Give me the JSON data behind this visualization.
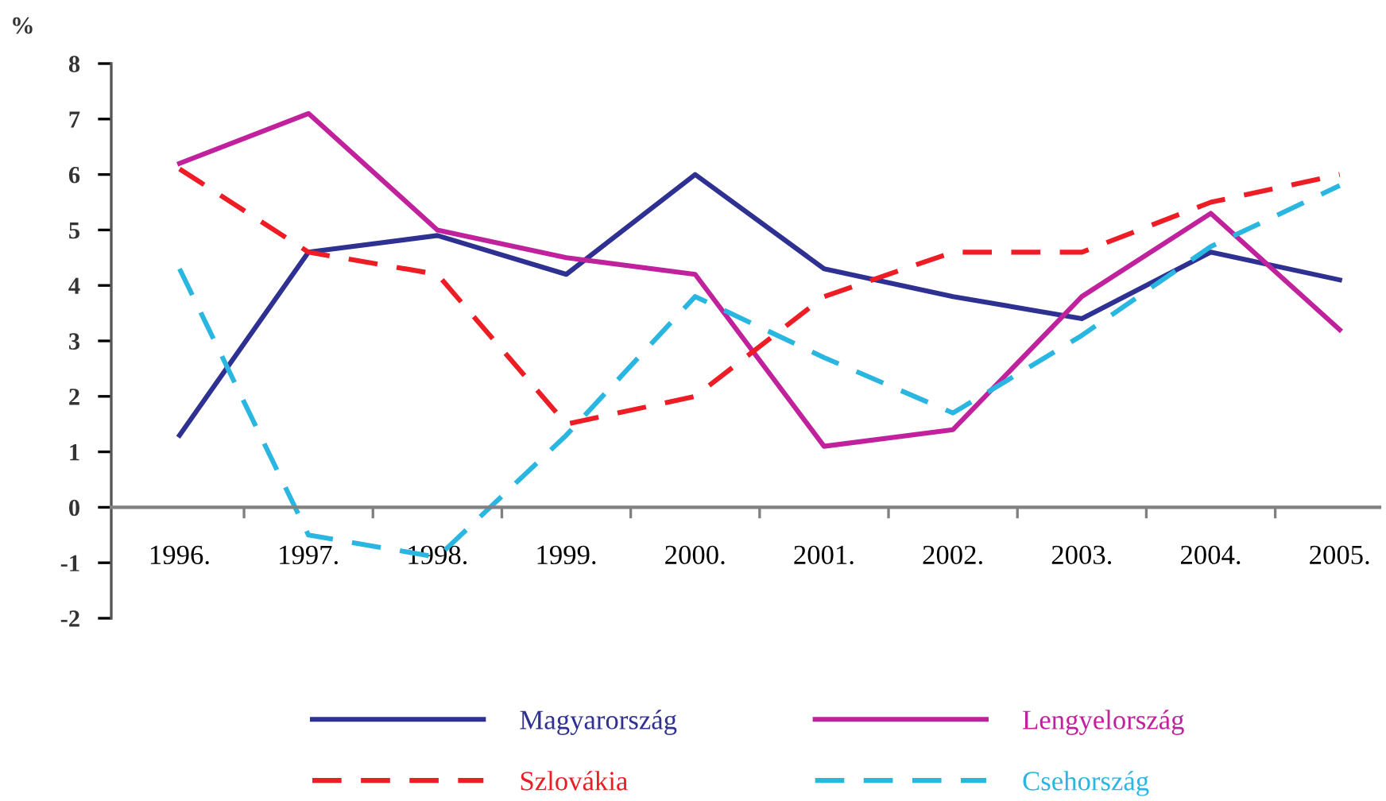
{
  "chart_data": {
    "type": "line",
    "ylabel": "%",
    "categories": [
      "1996.",
      "1997.",
      "1998.",
      "1999.",
      "2000.",
      "2001.",
      "2002.",
      "2003.",
      "2004.",
      "2005."
    ],
    "ylim": [
      -2,
      8
    ],
    "yticks": [
      -2,
      -1,
      0,
      1,
      2,
      3,
      4,
      5,
      6,
      7,
      8
    ],
    "grid": false,
    "legend": "bottom",
    "marker": "none",
    "series": [
      {
        "name": "Magyarország",
        "color": "#2e3192",
        "line_style": "solid",
        "values": [
          1.3,
          4.6,
          4.9,
          4.2,
          6.0,
          4.3,
          3.8,
          3.4,
          4.6,
          4.1
        ]
      },
      {
        "name": "Lengyelország",
        "color": "#c0219c",
        "line_style": "solid",
        "values": [
          6.2,
          7.1,
          5.0,
          4.5,
          4.2,
          1.1,
          1.4,
          3.8,
          5.3,
          3.2
        ]
      },
      {
        "name": "Szlovákia",
        "color": "#ee1c25",
        "line_style": "dashed",
        "values": [
          6.1,
          4.6,
          4.2,
          1.5,
          2.0,
          3.8,
          4.6,
          4.6,
          5.5,
          6.0
        ]
      },
      {
        "name": "Csehország",
        "color": "#29b6e0",
        "line_style": "dashed",
        "values": [
          4.3,
          -0.5,
          -0.9,
          1.3,
          3.8,
          2.7,
          1.7,
          3.1,
          4.7,
          5.8
        ]
      }
    ]
  }
}
